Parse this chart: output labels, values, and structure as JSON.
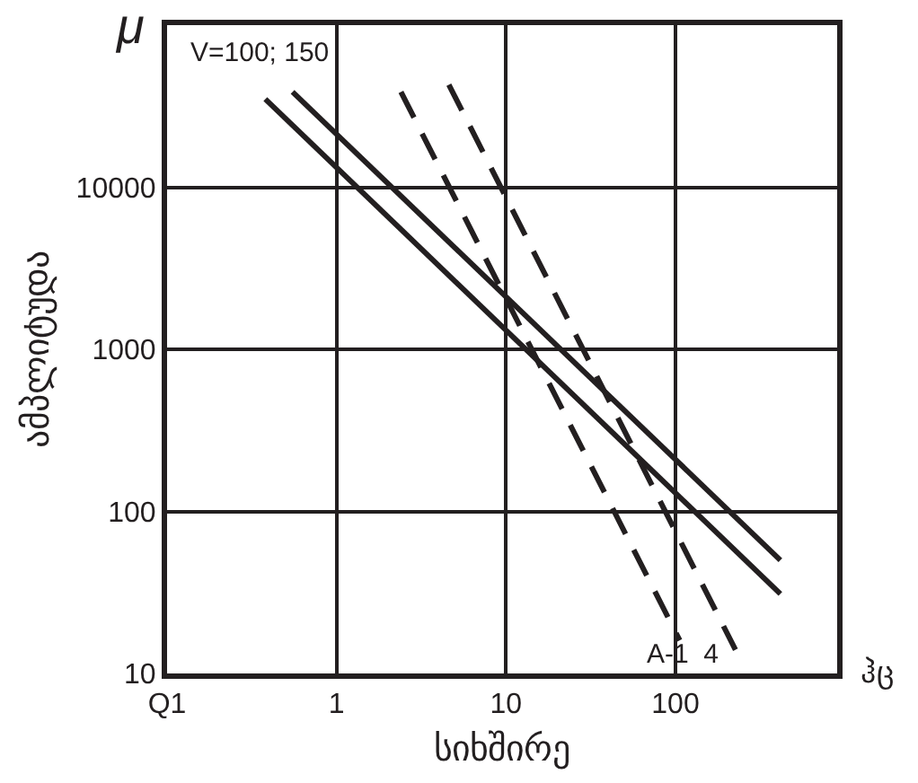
{
  "chart_data": {
    "type": "line",
    "xlabel": "სიხშირე",
    "ylabel": "ამპლიტუდა",
    "log": "xy",
    "grid": true,
    "marker": "none",
    "xlim": [
      0.1,
      900
    ],
    "xticks": [
      {
        "value": 0.1,
        "label": "Q1"
      },
      1,
      10,
      100
    ],
    "ylim": [
      10,
      100000
    ],
    "yticks": [
      10,
      100,
      1000,
      10000
    ],
    "series": [
      {
        "color": "#231f20",
        "line_style": "solid",
        "x": [
          0.55,
          416
        ],
        "values": [
          38700,
          50
        ]
      },
      {
        "color": "#231f20",
        "line_style": "solid",
        "x": [
          0.38,
          416
        ],
        "values": [
          35000,
          31
        ]
      },
      {
        "color": "#231f20",
        "line_style": "dashed",
        "x": [
          2.4,
          106
        ],
        "values": [
          38700,
          16
        ]
      },
      {
        "color": "#231f20",
        "line_style": "dashed",
        "x": [
          4.6,
          226
        ],
        "values": [
          42900,
          14
        ]
      }
    ],
    "annotations": [
      "μ",
      "V=100; 150",
      "A-1  4",
      "ჰც"
    ]
  }
}
